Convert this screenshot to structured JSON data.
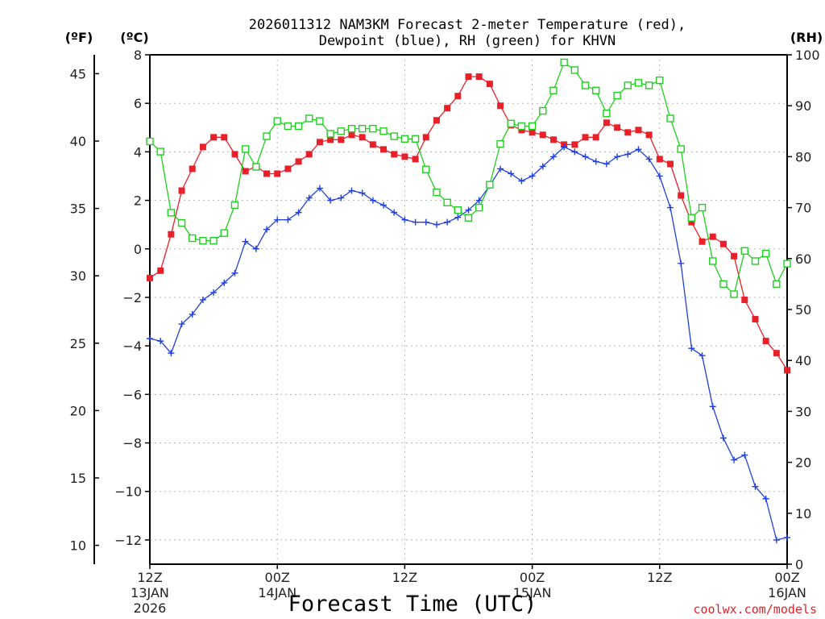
{
  "chart_data": {
    "type": "line",
    "title_line1": "2026011312 NAM3KM Forecast 2-meter Temperature (red),",
    "title_line2": "Dewpoint (blue), RH (green) for KHVN",
    "xlabel": "Forecast Time (UTC)",
    "unit_f": "(ºF)",
    "unit_c": "(ºC)",
    "unit_rh": "(RH)",
    "credit": "coolwx.com/models",
    "xlim_hours": [
      0,
      60
    ],
    "ylim_c": [
      -13,
      8
    ],
    "ylim_rh": [
      0,
      100
    ],
    "yticks_c": [
      "8",
      "6",
      "4",
      "2",
      "0",
      "−2",
      "−4",
      "−6",
      "−8",
      "−10",
      "−12"
    ],
    "yticks_c_values": [
      8,
      6,
      4,
      2,
      0,
      -2,
      -4,
      -6,
      -8,
      -10,
      -12
    ],
    "yticks_f": [
      "45",
      "40",
      "35",
      "30",
      "25",
      "20",
      "15",
      "10"
    ],
    "yticks_f_values": [
      45,
      40,
      35,
      30,
      25,
      20,
      15,
      10
    ],
    "yticks_rh": [
      "100",
      "90",
      "80",
      "70",
      "60",
      "50",
      "40",
      "30",
      "20",
      "10",
      "0"
    ],
    "yticks_rh_values": [
      100,
      90,
      80,
      70,
      60,
      50,
      40,
      30,
      20,
      10,
      0
    ],
    "xticks": [
      {
        "hour": 0,
        "l1": "12Z",
        "l2": "13JAN",
        "l3": "2026"
      },
      {
        "hour": 12,
        "l1": "00Z",
        "l2": "14JAN",
        "l3": ""
      },
      {
        "hour": 24,
        "l1": "12Z",
        "l2": "",
        "l3": ""
      },
      {
        "hour": 36,
        "l1": "00Z",
        "l2": "15JAN",
        "l3": ""
      },
      {
        "hour": 48,
        "l1": "12Z",
        "l2": "",
        "l3": ""
      },
      {
        "hour": 60,
        "l1": "00Z",
        "l2": "16JAN",
        "l3": ""
      }
    ],
    "hours": [
      0,
      1,
      2,
      3,
      4,
      5,
      6,
      7,
      8,
      9,
      10,
      11,
      12,
      13,
      14,
      15,
      16,
      17,
      18,
      19,
      20,
      21,
      22,
      23,
      24,
      25,
      26,
      27,
      28,
      29,
      30,
      31,
      32,
      33,
      34,
      35,
      36,
      37,
      38,
      39,
      40,
      41,
      42,
      43,
      44,
      45,
      46,
      47,
      48,
      49,
      50,
      51,
      52,
      53,
      54,
      55,
      56,
      57,
      58,
      59,
      60
    ],
    "series": [
      {
        "name": "Temperature",
        "unit": "C",
        "color": "#e8202a",
        "marker": "filled-square",
        "values": [
          -1.2,
          -0.9,
          0.6,
          2.4,
          3.3,
          4.2,
          4.6,
          4.6,
          3.9,
          3.2,
          3.4,
          3.1,
          3.1,
          3.3,
          3.6,
          3.9,
          4.4,
          4.5,
          4.5,
          4.7,
          4.6,
          4.3,
          4.1,
          3.9,
          3.8,
          3.7,
          4.6,
          5.3,
          5.8,
          6.3,
          7.1,
          7.1,
          6.8,
          5.9,
          5.1,
          4.9,
          4.8,
          4.7,
          4.5,
          4.3,
          4.3,
          4.6,
          4.6,
          5.2,
          5.0,
          4.8,
          4.9,
          4.7,
          3.7,
          3.5,
          2.2,
          1.1,
          0.3,
          0.5,
          0.2,
          -0.3,
          -2.1,
          -2.9,
          -3.8,
          -4.3,
          -5.0
        ]
      },
      {
        "name": "Dewpoint",
        "unit": "C",
        "color": "#2040e0",
        "marker": "plus",
        "values": [
          -3.7,
          -3.8,
          -4.3,
          -3.1,
          -2.7,
          -2.1,
          -1.8,
          -1.4,
          -1.0,
          0.3,
          0.0,
          0.8,
          1.2,
          1.2,
          1.5,
          2.1,
          2.5,
          2.0,
          2.1,
          2.4,
          2.3,
          2.0,
          1.8,
          1.5,
          1.2,
          1.1,
          1.1,
          1.0,
          1.1,
          1.3,
          1.6,
          2.0,
          2.6,
          3.3,
          3.1,
          2.8,
          3.0,
          3.4,
          3.8,
          4.2,
          4.0,
          3.8,
          3.6,
          3.5,
          3.8,
          3.9,
          4.1,
          3.7,
          3.0,
          1.7,
          -0.6,
          -4.1,
          -4.4,
          -6.5,
          -7.8,
          -8.7,
          -8.5,
          -9.8,
          -10.3,
          -12.0,
          -11.9
        ]
      },
      {
        "name": "RH",
        "unit": "%",
        "color": "#20d020",
        "marker": "open-square",
        "values": [
          83,
          81,
          69,
          67,
          64,
          63.5,
          63.5,
          65,
          70.5,
          81.5,
          78,
          84,
          87,
          86,
          86,
          87.5,
          87,
          84.5,
          85,
          85.5,
          85.5,
          85.5,
          85,
          84,
          83.5,
          83.5,
          77.5,
          73,
          71,
          69.5,
          68,
          70,
          74.5,
          82.5,
          86.5,
          86,
          86,
          89,
          93,
          98.5,
          97,
          94,
          93,
          88.5,
          92,
          94,
          94.5,
          94,
          95,
          87.5,
          81.5,
          68,
          70,
          59.5,
          55,
          53,
          61.5,
          59.5,
          61,
          55,
          59
        ]
      }
    ]
  }
}
